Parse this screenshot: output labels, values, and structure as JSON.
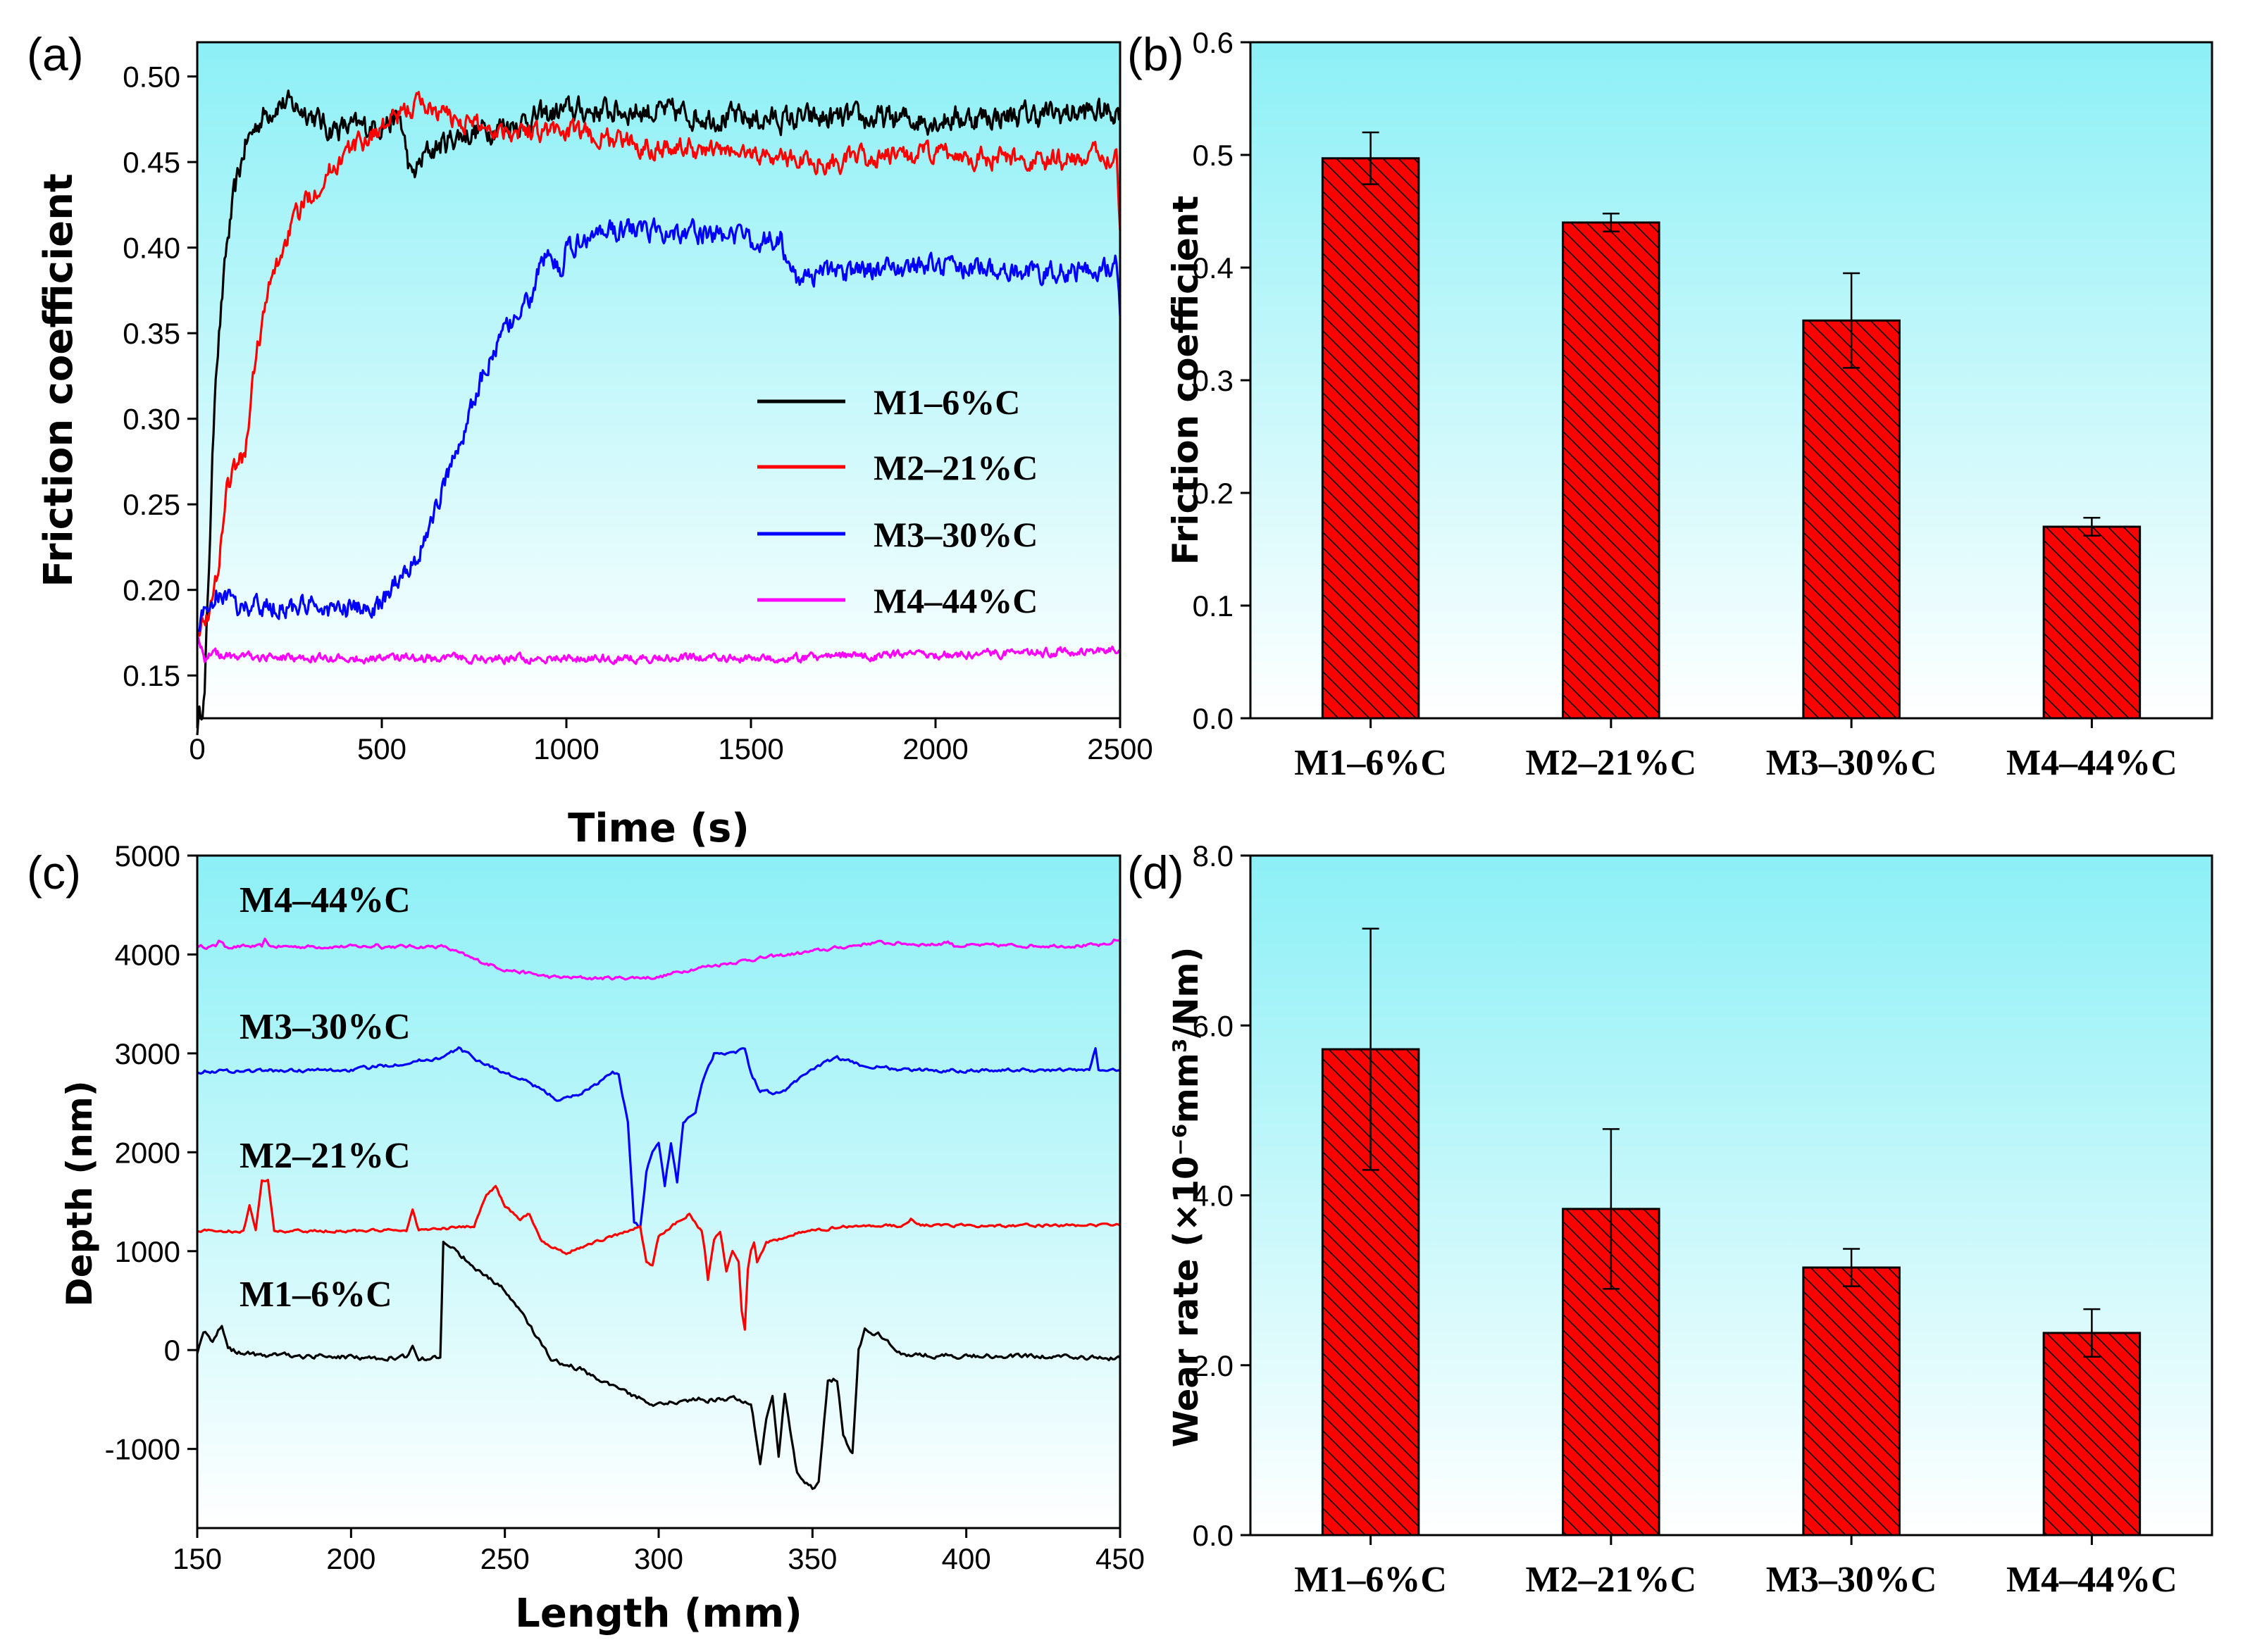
{
  "colors": {
    "black": "#000000",
    "red": "#ff0000",
    "blue": "#0000ff",
    "magenta": "#ff00ff",
    "bar_fill": "#ff0000",
    "bg_top": "#8cf0f6",
    "bg_bottom": "#ffffff"
  },
  "chart_data": [
    {
      "panel": "(a)",
      "type": "line",
      "xlabel": "Time (s)",
      "ylabel": "Friction coefficient",
      "xlim": [
        0,
        2500
      ],
      "ylim": [
        0.125,
        0.52
      ],
      "xticks": [
        "0",
        "500",
        "1000",
        "1500",
        "2000",
        "2500"
      ],
      "yticks": [
        "0.15",
        "0.20",
        "0.25",
        "0.30",
        "0.35",
        "0.40",
        "0.45",
        "0.50"
      ],
      "legend": [
        "M1–6%C",
        "M2–21%C",
        "M3–30%C",
        "M4–44%C"
      ],
      "series": [
        {
          "name": "M1–6%C",
          "color": "#000000",
          "noise": 0.006,
          "points": [
            [
              0,
              0.12
            ],
            [
              20,
              0.14
            ],
            [
              50,
              0.33
            ],
            [
              80,
              0.4
            ],
            [
              100,
              0.43
            ],
            [
              130,
              0.46
            ],
            [
              170,
              0.475
            ],
            [
              220,
              0.485
            ],
            [
              300,
              0.48
            ],
            [
              350,
              0.47
            ],
            [
              450,
              0.47
            ],
            [
              550,
              0.475
            ],
            [
              580,
              0.44
            ],
            [
              620,
              0.455
            ],
            [
              700,
              0.465
            ],
            [
              900,
              0.475
            ],
            [
              1000,
              0.48
            ],
            [
              1200,
              0.48
            ],
            [
              1500,
              0.475
            ],
            [
              2000,
              0.475
            ],
            [
              2500,
              0.48
            ]
          ]
        },
        {
          "name": "M2–21%C",
          "color": "#ff0000",
          "noise": 0.005,
          "points": [
            [
              0,
              0.18
            ],
            [
              40,
              0.19
            ],
            [
              60,
              0.22
            ],
            [
              80,
              0.26
            ],
            [
              100,
              0.27
            ],
            [
              130,
              0.28
            ],
            [
              160,
              0.34
            ],
            [
              200,
              0.38
            ],
            [
              250,
              0.41
            ],
            [
              300,
              0.43
            ],
            [
              400,
              0.455
            ],
            [
              500,
              0.47
            ],
            [
              600,
              0.485
            ],
            [
              700,
              0.475
            ],
            [
              800,
              0.47
            ],
            [
              1000,
              0.468
            ],
            [
              1200,
              0.46
            ],
            [
              1500,
              0.455
            ],
            [
              1700,
              0.45
            ],
            [
              2000,
              0.455
            ],
            [
              2300,
              0.45
            ],
            [
              2490,
              0.455
            ],
            [
              2500,
              0.41
            ]
          ]
        },
        {
          "name": "M3–30%C",
          "color": "#0000ff",
          "noise": 0.005,
          "points": [
            [
              0,
              0.18
            ],
            [
              30,
              0.19
            ],
            [
              60,
              0.2
            ],
            [
              100,
              0.19
            ],
            [
              200,
              0.19
            ],
            [
              300,
              0.19
            ],
            [
              400,
              0.188
            ],
            [
              500,
              0.19
            ],
            [
              550,
              0.21
            ],
            [
              600,
              0.22
            ],
            [
              650,
              0.25
            ],
            [
              700,
              0.28
            ],
            [
              750,
              0.31
            ],
            [
              800,
              0.34
            ],
            [
              850,
              0.355
            ],
            [
              900,
              0.37
            ],
            [
              950,
              0.4
            ],
            [
              990,
              0.38
            ],
            [
              1000,
              0.4
            ],
            [
              1100,
              0.41
            ],
            [
              1300,
              0.41
            ],
            [
              1500,
              0.405
            ],
            [
              1580,
              0.405
            ],
            [
              1620,
              0.38
            ],
            [
              1700,
              0.385
            ],
            [
              2000,
              0.39
            ],
            [
              2300,
              0.385
            ],
            [
              2490,
              0.39
            ],
            [
              2500,
              0.36
            ]
          ]
        },
        {
          "name": "M4–44%C",
          "color": "#ff00ff",
          "noise": 0.002,
          "points": [
            [
              0,
              0.175
            ],
            [
              20,
              0.16
            ],
            [
              40,
              0.163
            ],
            [
              100,
              0.161
            ],
            [
              500,
              0.16
            ],
            [
              1000,
              0.16
            ],
            [
              1500,
              0.16
            ],
            [
              2000,
              0.162
            ],
            [
              2500,
              0.165
            ]
          ]
        }
      ]
    },
    {
      "panel": "(b)",
      "type": "bar",
      "ylabel": "Friction coefficient",
      "categories": [
        "M1–6%C",
        "M2–21%C",
        "M3–30%C",
        "M4–44%C"
      ],
      "values": [
        0.497,
        0.44,
        0.353,
        0.17
      ],
      "errors": [
        0.023,
        0.008,
        0.042,
        0.008
      ],
      "ylim": [
        0,
        0.6
      ],
      "yticks": [
        "0.0",
        "0.1",
        "0.2",
        "0.3",
        "0.4",
        "0.5",
        "0.6"
      ]
    },
    {
      "panel": "(c)",
      "type": "line",
      "xlabel": "Length (mm)",
      "ylabel": "Depth (nm)",
      "xlim": [
        150,
        450
      ],
      "ylim": [
        -1800,
        5000
      ],
      "xticks": [
        "150",
        "200",
        "250",
        "300",
        "350",
        "400",
        "450"
      ],
      "yticks": [
        "-1000",
        "0",
        "1000",
        "2000",
        "3000",
        "4000",
        "5000"
      ],
      "labels": [
        "M4–44%C",
        "M3–30%C",
        "M2–21%C",
        "M1–6%C"
      ],
      "series": [
        {
          "name": "M4–44%C",
          "color": "#ff00ff",
          "noise": 15,
          "points": [
            [
              150,
              4080
            ],
            [
              156,
              4080
            ],
            [
              157,
              4150
            ],
            [
              159,
              4080
            ],
            [
              171,
              4080
            ],
            [
              172,
              4140
            ],
            [
              174,
              4080
            ],
            [
              207,
              4080
            ],
            [
              208,
              4110
            ],
            [
              210,
              4080
            ],
            [
              230,
              4080
            ],
            [
              240,
              3950
            ],
            [
              250,
              3850
            ],
            [
              265,
              3770
            ],
            [
              280,
              3760
            ],
            [
              300,
              3770
            ],
            [
              310,
              3850
            ],
            [
              330,
              3950
            ],
            [
              350,
              4030
            ],
            [
              370,
              4120
            ],
            [
              390,
              4100
            ],
            [
              394,
              4130
            ],
            [
              396,
              4090
            ],
            [
              446,
              4090
            ],
            [
              448,
              4140
            ],
            [
              450,
              4140
            ]
          ]
        },
        {
          "name": "M3–30%C",
          "color": "#0000ff",
          "noise": 15,
          "points": [
            [
              150,
              2820
            ],
            [
              200,
              2830
            ],
            [
              207,
              2860
            ],
            [
              230,
              2960
            ],
            [
              235,
              3050
            ],
            [
              240,
              2950
            ],
            [
              250,
              2800
            ],
            [
              258,
              2700
            ],
            [
              268,
              2520
            ],
            [
              275,
              2600
            ],
            [
              285,
              2800
            ],
            [
              287,
              2780
            ],
            [
              290,
              2300
            ],
            [
              292,
              1300
            ],
            [
              294,
              1250
            ],
            [
              296,
              1800
            ],
            [
              298,
              2000
            ],
            [
              300,
              2100
            ],
            [
              302,
              1650
            ],
            [
              304,
              2100
            ],
            [
              306,
              1700
            ],
            [
              308,
              2300
            ],
            [
              312,
              2420
            ],
            [
              314,
              2700
            ],
            [
              318,
              3000
            ],
            [
              325,
              3020
            ],
            [
              328,
              3050
            ],
            [
              330,
              2800
            ],
            [
              333,
              2620
            ],
            [
              340,
              2600
            ],
            [
              350,
              2850
            ],
            [
              358,
              2950
            ],
            [
              366,
              2880
            ],
            [
              380,
              2830
            ],
            [
              440,
              2830
            ],
            [
              442,
              3050
            ],
            [
              443,
              2830
            ],
            [
              450,
              2830
            ]
          ]
        },
        {
          "name": "M2–21%C",
          "color": "#ff0000",
          "noise": 12,
          "points": [
            [
              150,
              1210
            ],
            [
              165,
              1200
            ],
            [
              167,
              1450
            ],
            [
              169,
              1200
            ],
            [
              171,
              1700
            ],
            [
              173,
              1730
            ],
            [
              175,
              1200
            ],
            [
              218,
              1210
            ],
            [
              220,
              1420
            ],
            [
              222,
              1210
            ],
            [
              240,
              1250
            ],
            [
              244,
              1580
            ],
            [
              247,
              1650
            ],
            [
              250,
              1450
            ],
            [
              255,
              1320
            ],
            [
              258,
              1380
            ],
            [
              262,
              1100
            ],
            [
              270,
              980
            ],
            [
              280,
              1100
            ],
            [
              290,
              1200
            ],
            [
              294,
              1260
            ],
            [
              296,
              900
            ],
            [
              298,
              850
            ],
            [
              300,
              1150
            ],
            [
              310,
              1380
            ],
            [
              314,
              1200
            ],
            [
              315,
              1000
            ],
            [
              316,
              700
            ],
            [
              318,
              1100
            ],
            [
              320,
              1200
            ],
            [
              322,
              800
            ],
            [
              324,
              1000
            ],
            [
              326,
              900
            ],
            [
              327,
              400
            ],
            [
              328,
              200
            ],
            [
              329,
              800
            ],
            [
              330,
              1000
            ],
            [
              331,
              1100
            ],
            [
              332,
              900
            ],
            [
              335,
              1080
            ],
            [
              345,
              1180
            ],
            [
              360,
              1250
            ],
            [
              380,
              1260
            ],
            [
              382,
              1330
            ],
            [
              384,
              1260
            ],
            [
              450,
              1260
            ]
          ]
        },
        {
          "name": "M1–6%C",
          "color": "#000000",
          "noise": 20,
          "points": [
            [
              150,
              -20
            ],
            [
              152,
              200
            ],
            [
              155,
              100
            ],
            [
              158,
              250
            ],
            [
              160,
              0
            ],
            [
              170,
              -50
            ],
            [
              200,
              -70
            ],
            [
              210,
              -80
            ],
            [
              218,
              -70
            ],
            [
              220,
              30
            ],
            [
              222,
              -80
            ],
            [
              229,
              -80
            ],
            [
              230,
              1100
            ],
            [
              233,
              1050
            ],
            [
              236,
              950
            ],
            [
              240,
              850
            ],
            [
              250,
              600
            ],
            [
              258,
              250
            ],
            [
              265,
              -100
            ],
            [
              275,
              -200
            ],
            [
              290,
              -450
            ],
            [
              300,
              -550
            ],
            [
              310,
              -500
            ],
            [
              325,
              -500
            ],
            [
              330,
              -520
            ],
            [
              333,
              -1150
            ],
            [
              335,
              -700
            ],
            [
              337,
              -450
            ],
            [
              339,
              -1050
            ],
            [
              341,
              -450
            ],
            [
              345,
              -1250
            ],
            [
              350,
              -1400
            ],
            [
              352,
              -1350
            ],
            [
              355,
              -300
            ],
            [
              358,
              -300
            ],
            [
              360,
              -850
            ],
            [
              363,
              -1050
            ],
            [
              365,
              0
            ],
            [
              367,
              200
            ],
            [
              372,
              150
            ],
            [
              380,
              -50
            ],
            [
              400,
              -60
            ],
            [
              450,
              -80
            ]
          ]
        }
      ]
    },
    {
      "panel": "(d)",
      "type": "bar",
      "ylabel": "Wear rate (×10⁻⁶mm³/Nm)",
      "categories": [
        "M1–6%C",
        "M2–21%C",
        "M3–30%C",
        "M4–44%C"
      ],
      "values": [
        5.72,
        3.84,
        3.15,
        2.38
      ],
      "errors": [
        1.42,
        0.94,
        0.22,
        0.28
      ],
      "ylim": [
        0,
        8
      ],
      "yticks": [
        "0.0",
        "2.0",
        "4.0",
        "6.0",
        "8.0"
      ]
    }
  ]
}
